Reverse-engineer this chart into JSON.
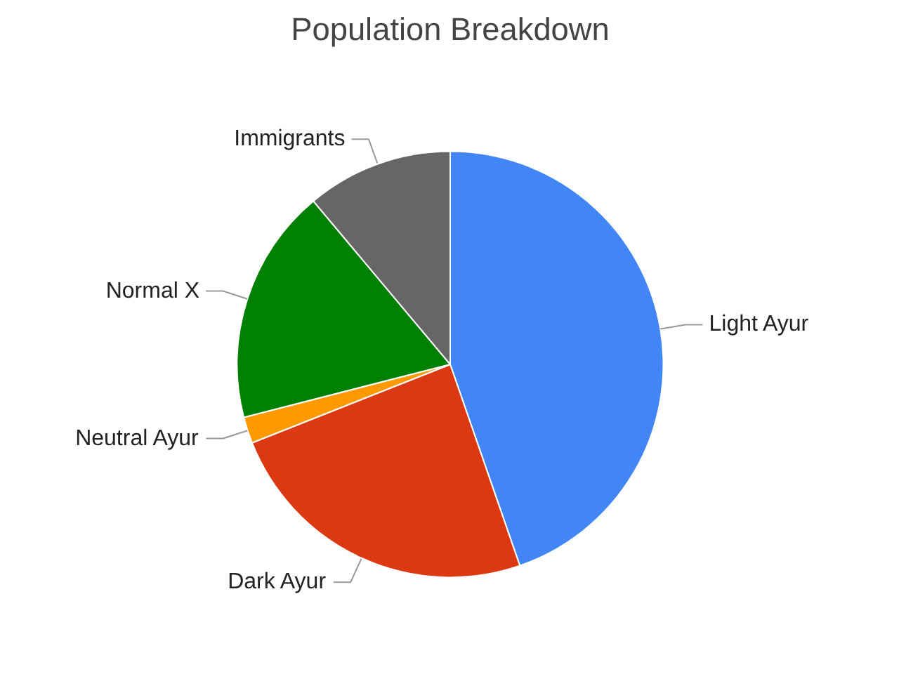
{
  "chart_data": {
    "type": "pie",
    "title": "Population Breakdown",
    "categories": [
      "Light Ayur",
      "Dark Ayur",
      "Neutral Ayur",
      "Normal X",
      "Immigrants"
    ],
    "values": [
      44.7,
      24.3,
      2.0,
      17.9,
      11.1
    ],
    "colors": [
      "#4285f4",
      "#dc3912",
      "#ff9900",
      "#008000",
      "#666666"
    ]
  }
}
